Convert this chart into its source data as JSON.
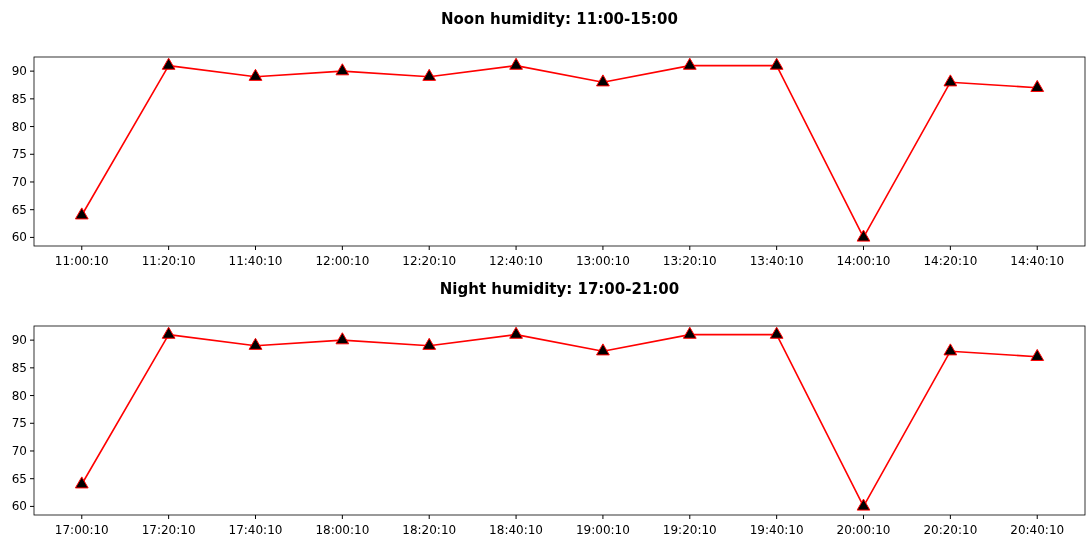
{
  "chart_data": [
    {
      "type": "line",
      "title": "Noon humidity: 11:00-15:00",
      "categories": [
        "11:00:10",
        "11:20:10",
        "11:40:10",
        "12:00:10",
        "12:20:10",
        "12:40:10",
        "13:00:10",
        "13:20:10",
        "13:40:10",
        "14:00:10",
        "14:20:10",
        "14:40:10"
      ],
      "series": [
        {
          "color": "#ff0000",
          "values": [
            64,
            91,
            89,
            90,
            89,
            91,
            88,
            91,
            91,
            60,
            88,
            87
          ]
        }
      ],
      "ylim": [
        58.45,
        92.55
      ],
      "yticks": [
        60,
        65,
        70,
        75,
        80,
        85,
        90
      ],
      "grid": false,
      "marker": "triangle",
      "line_style": "solid"
    },
    {
      "type": "line",
      "title": "Night humidity: 17:00-21:00",
      "categories": [
        "17:00:10",
        "17:20:10",
        "17:40:10",
        "18:00:10",
        "18:20:10",
        "18:40:10",
        "19:00:10",
        "19:20:10",
        "19:40:10",
        "20:00:10",
        "20:20:10",
        "20:40:10"
      ],
      "series": [
        {
          "color": "#ff0000",
          "values": [
            64,
            91,
            89,
            90,
            89,
            91,
            88,
            91,
            91,
            60,
            88,
            87
          ]
        }
      ],
      "ylim": [
        58.45,
        92.55
      ],
      "yticks": [
        60,
        65,
        70,
        75,
        80,
        85,
        90
      ],
      "grid": false,
      "marker": "triangle",
      "line_style": "solid"
    }
  ]
}
